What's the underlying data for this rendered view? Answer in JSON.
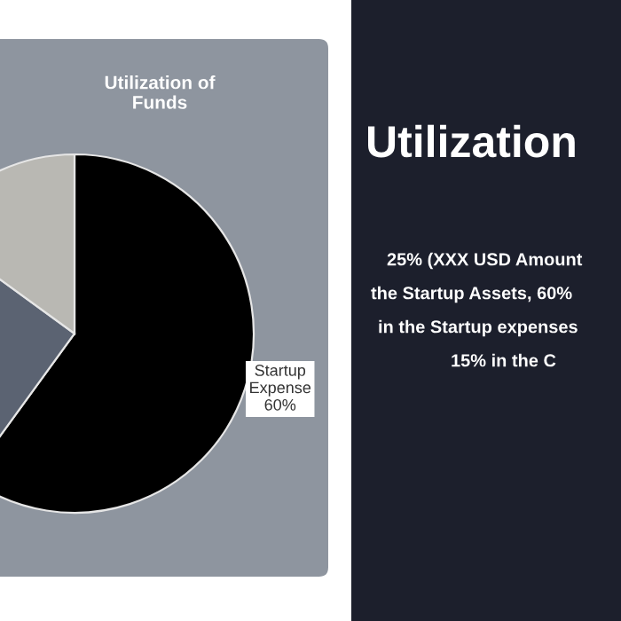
{
  "chart_data": {
    "type": "pie",
    "title": "Utilization of Funds",
    "categories": [
      "Startup Expense",
      null,
      null
    ],
    "values": [
      60,
      25,
      15
    ],
    "colors": [
      "#000000",
      "#5b6372",
      "#b9b8b3"
    ],
    "value_labels": [
      "60%",
      null,
      null
    ],
    "annotations": [
      "Utilization",
      "25% (XXX USD Amount",
      "the Startup Assets, 60%",
      "in the Startup expenses",
      "15% in the C"
    ]
  }
}
